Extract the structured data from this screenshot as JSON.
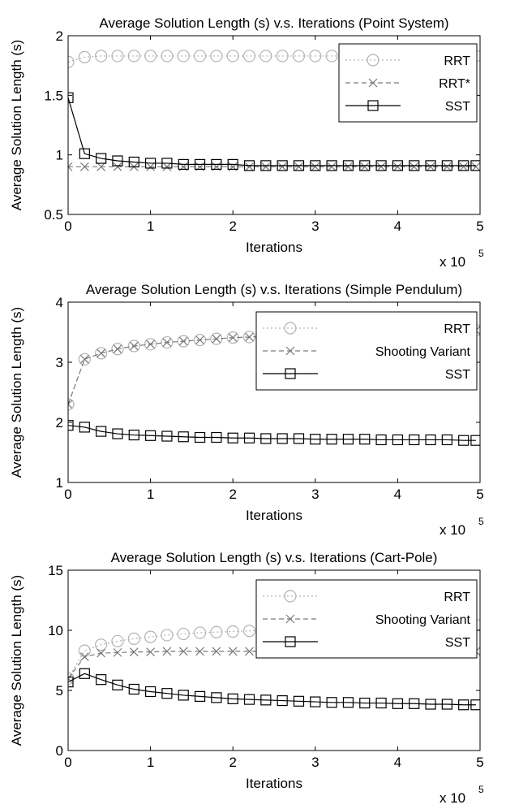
{
  "chart_data": [
    {
      "type": "line",
      "title": "Average Solution Length (s) v.s. Iterations (Point System)",
      "xlabel": "Iterations",
      "ylabel": "Average Solution Length (s)",
      "x_multiplier_label": "x 10",
      "x_multiplier_exp": "5",
      "xlim": [
        0,
        5
      ],
      "ylim": [
        0.5,
        2
      ],
      "xticks": [
        "0",
        "1",
        "2",
        "3",
        "4",
        "5"
      ],
      "yticks": [
        "0.5",
        "1",
        "1.5",
        "2"
      ],
      "ytick_values": [
        0.5,
        1,
        1.5,
        2
      ],
      "legend_position": "top-right",
      "series": [
        {
          "name": "RRT",
          "style": "dotted",
          "marker": "circle",
          "color": "#b3b3b3",
          "x": [
            0,
            0.2,
            0.4,
            0.6,
            0.8,
            1.0,
            1.2,
            1.4,
            1.6,
            1.8,
            2.0,
            2.2,
            2.4,
            2.6,
            2.8,
            3.0,
            3.2,
            3.4,
            3.6,
            3.8,
            4.0,
            4.2,
            4.4,
            4.6,
            4.8,
            4.95
          ],
          "y": [
            1.78,
            1.82,
            1.83,
            1.83,
            1.83,
            1.83,
            1.83,
            1.83,
            1.83,
            1.83,
            1.83,
            1.83,
            1.83,
            1.83,
            1.83,
            1.83,
            1.83,
            1.83,
            1.83,
            1.83,
            1.83,
            1.83,
            1.83,
            1.83,
            1.83,
            1.83
          ]
        },
        {
          "name": "RRT*",
          "style": "dashed",
          "marker": "x",
          "color": "#7a7a7a",
          "x": [
            0,
            0.2,
            0.4,
            0.6,
            0.8,
            1.0,
            1.2,
            1.4,
            1.6,
            1.8,
            2.0,
            2.2,
            2.4,
            2.6,
            2.8,
            3.0,
            3.2,
            3.4,
            3.6,
            3.8,
            4.0,
            4.2,
            4.4,
            4.6,
            4.8,
            4.95
          ],
          "y": [
            0.9,
            0.9,
            0.9,
            0.9,
            0.9,
            0.9,
            0.9,
            0.9,
            0.9,
            0.9,
            0.9,
            0.9,
            0.9,
            0.9,
            0.9,
            0.9,
            0.9,
            0.9,
            0.9,
            0.9,
            0.9,
            0.9,
            0.9,
            0.9,
            0.9,
            0.9
          ]
        },
        {
          "name": "SST",
          "style": "solid",
          "marker": "square",
          "color": "#000000",
          "x": [
            0,
            0.2,
            0.4,
            0.6,
            0.8,
            1.0,
            1.2,
            1.4,
            1.6,
            1.8,
            2.0,
            2.2,
            2.4,
            2.6,
            2.8,
            3.0,
            3.2,
            3.4,
            3.6,
            3.8,
            4.0,
            4.2,
            4.4,
            4.6,
            4.8,
            4.95
          ],
          "y": [
            1.48,
            1.01,
            0.97,
            0.95,
            0.94,
            0.93,
            0.93,
            0.92,
            0.92,
            0.92,
            0.92,
            0.91,
            0.91,
            0.91,
            0.91,
            0.91,
            0.91,
            0.91,
            0.91,
            0.91,
            0.91,
            0.91,
            0.91,
            0.91,
            0.91,
            0.91
          ]
        }
      ]
    },
    {
      "type": "line",
      "title": "Average Solution Length (s) v.s. Iterations (Simple Pendulum)",
      "xlabel": "Iterations",
      "ylabel": "Average Solution Length (s)",
      "x_multiplier_label": "x 10",
      "x_multiplier_exp": "5",
      "xlim": [
        0,
        5
      ],
      "ylim": [
        1,
        4
      ],
      "xticks": [
        "0",
        "1",
        "2",
        "3",
        "4",
        "5"
      ],
      "yticks": [
        "1",
        "2",
        "3",
        "4"
      ],
      "ytick_values": [
        1,
        2,
        3,
        4
      ],
      "legend_position": "top-right",
      "series": [
        {
          "name": "RRT",
          "style": "dotted",
          "marker": "circle",
          "color": "#b3b3b3",
          "x": [
            0,
            0.2,
            0.4,
            0.6,
            0.8,
            1.0,
            1.2,
            1.4,
            1.6,
            1.8,
            2.0,
            2.2,
            2.4,
            2.6,
            2.8,
            3.0,
            3.2,
            3.4,
            3.6,
            3.8,
            4.0,
            4.2,
            4.4,
            4.6,
            4.8,
            4.95
          ],
          "y": [
            2.3,
            3.05,
            3.15,
            3.22,
            3.27,
            3.3,
            3.33,
            3.35,
            3.37,
            3.39,
            3.41,
            3.42,
            3.43,
            3.44,
            3.45,
            3.46,
            3.47,
            3.48,
            3.48,
            3.49,
            3.5,
            3.5,
            3.51,
            3.52,
            3.52,
            3.53
          ]
        },
        {
          "name": "Shooting Variant",
          "style": "dashed",
          "marker": "x",
          "color": "#7a7a7a",
          "x": [
            0,
            0.2,
            0.4,
            0.6,
            0.8,
            1.0,
            1.2,
            1.4,
            1.6,
            1.8,
            2.0,
            2.2,
            2.4,
            2.6,
            2.8,
            3.0,
            3.2,
            3.4,
            3.6,
            3.8,
            4.0,
            4.2,
            4.4,
            4.6,
            4.8,
            4.95
          ],
          "y": [
            2.3,
            3.05,
            3.15,
            3.22,
            3.27,
            3.3,
            3.33,
            3.35,
            3.37,
            3.39,
            3.41,
            3.42,
            3.43,
            3.44,
            3.45,
            3.46,
            3.47,
            3.48,
            3.48,
            3.49,
            3.5,
            3.5,
            3.51,
            3.52,
            3.52,
            3.53
          ]
        },
        {
          "name": "SST",
          "style": "solid",
          "marker": "square",
          "color": "#000000",
          "x": [
            0,
            0.2,
            0.4,
            0.6,
            0.8,
            1.0,
            1.2,
            1.4,
            1.6,
            1.8,
            2.0,
            2.2,
            2.4,
            2.6,
            2.8,
            3.0,
            3.2,
            3.4,
            3.6,
            3.8,
            4.0,
            4.2,
            4.4,
            4.6,
            4.8,
            4.95
          ],
          "y": [
            1.95,
            1.92,
            1.85,
            1.81,
            1.79,
            1.78,
            1.77,
            1.76,
            1.75,
            1.75,
            1.74,
            1.74,
            1.73,
            1.73,
            1.73,
            1.72,
            1.72,
            1.72,
            1.72,
            1.71,
            1.71,
            1.71,
            1.71,
            1.71,
            1.7,
            1.7
          ]
        }
      ]
    },
    {
      "type": "line",
      "title": "Average Solution Length (s) v.s. Iterations (Cart-Pole)",
      "xlabel": "Iterations",
      "ylabel": "Average Solution Length (s)",
      "x_multiplier_label": "x 10",
      "x_multiplier_exp": "5",
      "xlim": [
        0,
        5
      ],
      "ylim": [
        0,
        15
      ],
      "xticks": [
        "0",
        "1",
        "2",
        "3",
        "4",
        "5"
      ],
      "yticks": [
        "0",
        "5",
        "10",
        "15"
      ],
      "ytick_values": [
        0,
        5,
        10,
        15
      ],
      "legend_position": "top-right",
      "series": [
        {
          "name": "RRT",
          "style": "dotted",
          "marker": "circle",
          "color": "#b3b3b3",
          "x": [
            0,
            0.2,
            0.4,
            0.6,
            0.8,
            1.0,
            1.2,
            1.4,
            1.6,
            1.8,
            2.0,
            2.2,
            2.4,
            2.6,
            2.8,
            3.0,
            3.2,
            3.4,
            3.6,
            3.8,
            4.0,
            4.2,
            4.4,
            4.6,
            4.8,
            4.95
          ],
          "y": [
            6.0,
            8.3,
            8.8,
            9.1,
            9.3,
            9.45,
            9.6,
            9.7,
            9.8,
            9.85,
            9.9,
            9.95,
            10.0,
            10.05,
            10.1,
            10.1,
            10.15,
            10.2,
            10.2,
            10.25,
            10.3,
            10.3,
            10.35,
            10.35,
            10.4,
            10.45
          ]
        },
        {
          "name": "Shooting Variant",
          "style": "dashed",
          "marker": "x",
          "color": "#7a7a7a",
          "x": [
            0,
            0.2,
            0.4,
            0.6,
            0.8,
            1.0,
            1.2,
            1.4,
            1.6,
            1.8,
            2.0,
            2.2,
            2.4,
            2.6,
            2.8,
            3.0,
            3.2,
            3.4,
            3.6,
            3.8,
            4.0,
            4.2,
            4.4,
            4.6,
            4.8,
            4.95
          ],
          "y": [
            6.0,
            7.8,
            8.1,
            8.15,
            8.2,
            8.2,
            8.25,
            8.25,
            8.25,
            8.25,
            8.25,
            8.25,
            8.25,
            8.25,
            8.25,
            8.25,
            8.25,
            8.25,
            8.25,
            8.25,
            8.25,
            8.25,
            8.25,
            8.25,
            8.25,
            8.25
          ]
        },
        {
          "name": "SST",
          "style": "solid",
          "marker": "square",
          "color": "#000000",
          "x": [
            0,
            0.2,
            0.4,
            0.6,
            0.8,
            1.0,
            1.2,
            1.4,
            1.6,
            1.8,
            2.0,
            2.2,
            2.4,
            2.6,
            2.8,
            3.0,
            3.2,
            3.4,
            3.6,
            3.8,
            4.0,
            4.2,
            4.4,
            4.6,
            4.8,
            4.95
          ],
          "y": [
            5.7,
            6.4,
            5.9,
            5.45,
            5.1,
            4.9,
            4.75,
            4.6,
            4.5,
            4.4,
            4.3,
            4.25,
            4.2,
            4.15,
            4.1,
            4.05,
            4.0,
            4.0,
            3.95,
            3.95,
            3.9,
            3.9,
            3.85,
            3.85,
            3.8,
            3.8
          ]
        }
      ]
    }
  ]
}
